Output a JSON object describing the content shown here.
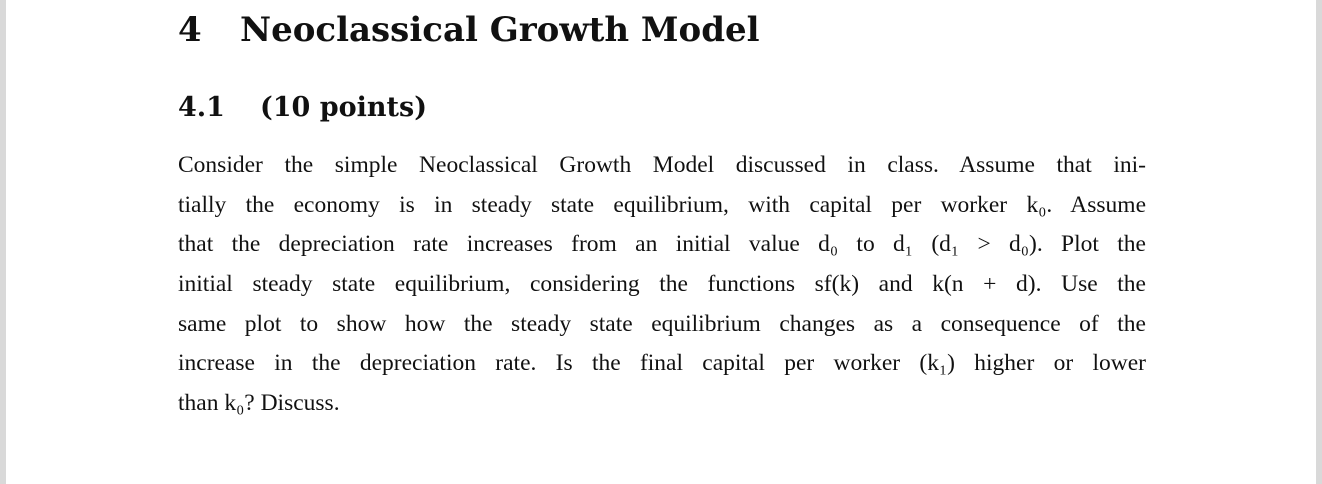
{
  "section": {
    "number": "4",
    "title": "Neoclassical Growth Model"
  },
  "subsection": {
    "number": "4.1",
    "title": "(10 points)"
  },
  "paragraph": {
    "lines": [
      "Consider the simple Neoclassical Growth Model discussed in class. Assume that ini-",
      "tially the economy is in steady state equilibrium, with capital per worker k₀. Assume",
      "that the depreciation rate increases from an initial value d₀ to d₁ (d₁ > d₀). Plot the",
      "initial steady state equilibrium, considering the functions sf(k) and k(n + d). Use the",
      "same plot to show how the steady state equilibrium changes as a consequence of the",
      "increase in the depreciation rate. Is the final capital per worker (k₁) higher or lower",
      "than k₀? Discuss."
    ]
  }
}
